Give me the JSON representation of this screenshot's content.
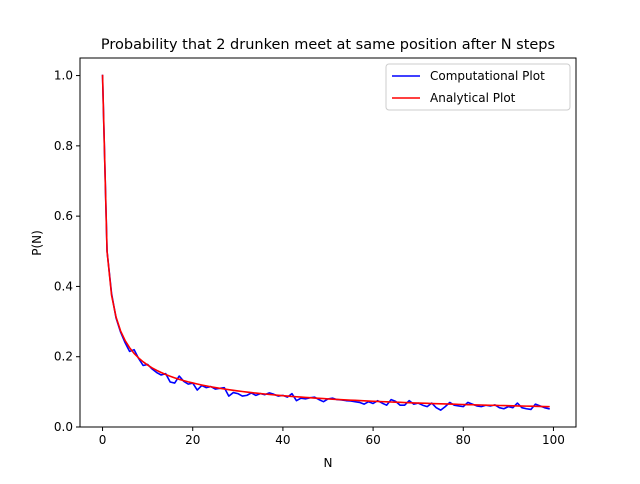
{
  "chart_data": {
    "type": "line",
    "title": "Probability that 2 drunken meet at same position after N steps",
    "xlabel": "N",
    "ylabel": "P(N)",
    "xlim": [
      -5,
      105
    ],
    "ylim": [
      0.0,
      1.05
    ],
    "xticks": [
      0,
      20,
      40,
      60,
      80,
      100
    ],
    "xtick_labels": [
      "0",
      "20",
      "40",
      "60",
      "80",
      "100"
    ],
    "yticks": [
      0.0,
      0.2,
      0.4,
      0.6,
      0.8,
      1.0
    ],
    "ytick_labels": [
      "0.0",
      "0.2",
      "0.4",
      "0.6",
      "0.8",
      "1.0"
    ],
    "grid": false,
    "legend_position": "top-right",
    "series": [
      {
        "name": "Computational Plot",
        "color": "#0000ff",
        "x": [
          0,
          1,
          2,
          3,
          4,
          5,
          6,
          7,
          8,
          9,
          10,
          11,
          12,
          13,
          14,
          15,
          16,
          17,
          18,
          19,
          20,
          21,
          22,
          23,
          24,
          25,
          26,
          27,
          28,
          29,
          30,
          31,
          32,
          33,
          34,
          35,
          36,
          37,
          38,
          39,
          40,
          41,
          42,
          43,
          44,
          45,
          46,
          47,
          48,
          49,
          50,
          51,
          52,
          53,
          54,
          55,
          56,
          57,
          58,
          59,
          60,
          61,
          62,
          63,
          64,
          65,
          66,
          67,
          68,
          69,
          70,
          71,
          72,
          73,
          74,
          75,
          76,
          77,
          78,
          79,
          80,
          81,
          82,
          83,
          84,
          85,
          86,
          87,
          88,
          89,
          90,
          91,
          92,
          93,
          94,
          95,
          96,
          97,
          98,
          99
        ],
        "y": [
          1.0,
          0.5,
          0.38,
          0.31,
          0.27,
          0.24,
          0.215,
          0.22,
          0.195,
          0.175,
          0.178,
          0.165,
          0.155,
          0.148,
          0.152,
          0.128,
          0.125,
          0.145,
          0.13,
          0.122,
          0.125,
          0.105,
          0.118,
          0.112,
          0.115,
          0.108,
          0.11,
          0.112,
          0.088,
          0.098,
          0.095,
          0.088,
          0.09,
          0.097,
          0.09,
          0.095,
          0.092,
          0.097,
          0.093,
          0.088,
          0.09,
          0.085,
          0.095,
          0.075,
          0.082,
          0.08,
          0.083,
          0.085,
          0.078,
          0.072,
          0.08,
          0.082,
          0.078,
          0.077,
          0.075,
          0.074,
          0.072,
          0.07,
          0.065,
          0.072,
          0.067,
          0.075,
          0.068,
          0.062,
          0.078,
          0.073,
          0.062,
          0.062,
          0.075,
          0.065,
          0.068,
          0.062,
          0.058,
          0.068,
          0.055,
          0.048,
          0.058,
          0.07,
          0.062,
          0.06,
          0.058,
          0.07,
          0.065,
          0.06,
          0.058,
          0.062,
          0.06,
          0.063,
          0.055,
          0.052,
          0.058,
          0.055,
          0.068,
          0.055,
          0.052,
          0.05,
          0.065,
          0.06,
          0.055,
          0.052
        ]
      },
      {
        "name": "Analytical Plot",
        "color": "#ff0000",
        "x": [
          0,
          1,
          2,
          3,
          4,
          5,
          6,
          7,
          8,
          9,
          10,
          11,
          12,
          13,
          14,
          15,
          16,
          17,
          18,
          19,
          20,
          21,
          22,
          23,
          24,
          25,
          26,
          27,
          28,
          29,
          30,
          31,
          32,
          33,
          34,
          35,
          36,
          37,
          38,
          39,
          40,
          41,
          42,
          43,
          44,
          45,
          46,
          47,
          48,
          49,
          50,
          51,
          52,
          53,
          54,
          55,
          56,
          57,
          58,
          59,
          60,
          61,
          62,
          63,
          64,
          65,
          66,
          67,
          68,
          69,
          70,
          71,
          72,
          73,
          74,
          75,
          76,
          77,
          78,
          79,
          80,
          81,
          82,
          83,
          84,
          85,
          86,
          87,
          88,
          89,
          90,
          91,
          92,
          93,
          94,
          95,
          96,
          97,
          98,
          99
        ],
        "y": [
          1.0,
          0.5,
          0.375,
          0.3125,
          0.2734,
          0.2461,
          0.2256,
          0.2095,
          0.1964,
          0.1855,
          0.1762,
          0.1682,
          0.1612,
          0.155,
          0.1494,
          0.1444,
          0.1399,
          0.1357,
          0.1319,
          0.1284,
          0.1254,
          0.1224,
          0.1196,
          0.117,
          0.1146,
          0.1123,
          0.1101,
          0.1081,
          0.1062,
          0.1043,
          0.1026,
          0.101,
          0.0994,
          0.0979,
          0.0965,
          0.0952,
          0.0939,
          0.0926,
          0.0914,
          0.0903,
          0.0892,
          0.0881,
          0.0871,
          0.0861,
          0.0851,
          0.0842,
          0.0833,
          0.0824,
          0.0816,
          0.0808,
          0.08,
          0.0792,
          0.0785,
          0.0778,
          0.0771,
          0.0764,
          0.0758,
          0.0751,
          0.0745,
          0.0739,
          0.0733,
          0.0727,
          0.0722,
          0.0716,
          0.0711,
          0.0706,
          0.0701,
          0.0696,
          0.0691,
          0.0686,
          0.0682,
          0.0677,
          0.0673,
          0.0668,
          0.0664,
          0.066,
          0.0656,
          0.0652,
          0.0648,
          0.0644,
          0.064,
          0.0636,
          0.0633,
          0.0629,
          0.0626,
          0.0622,
          0.0619,
          0.0616,
          0.0612,
          0.0609,
          0.0606,
          0.0603,
          0.06,
          0.0597,
          0.0594,
          0.0591,
          0.0588,
          0.0585,
          0.0582,
          0.058
        ]
      }
    ]
  }
}
